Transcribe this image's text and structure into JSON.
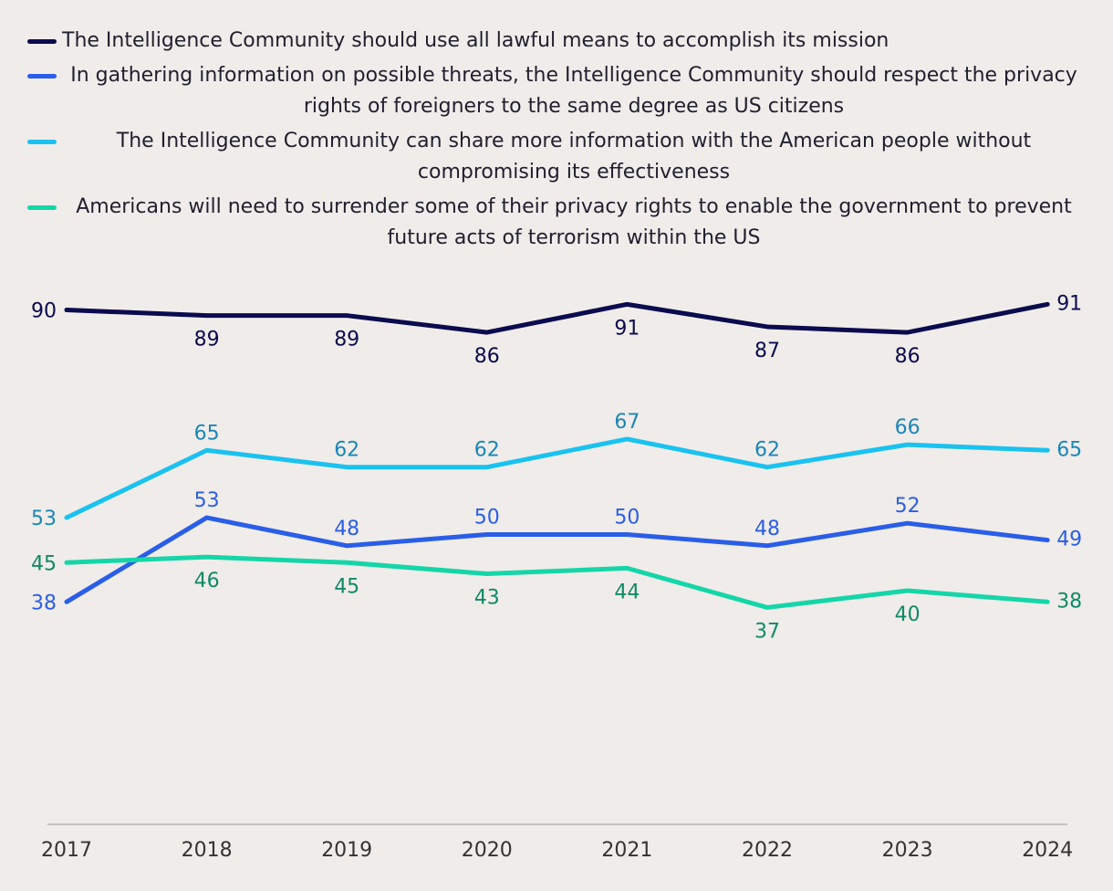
{
  "chart_data": {
    "type": "line",
    "title": "",
    "xlabel": "",
    "ylabel": "",
    "categories": [
      "2017",
      "2018",
      "2019",
      "2020",
      "2021",
      "2022",
      "2023",
      "2024"
    ],
    "ylim": [
      0,
      100
    ],
    "grid": false,
    "legend_position": "top",
    "series": [
      {
        "name": "The Intelligence Community should use all lawful means to accomplish its mission",
        "color": "#0b0b4f",
        "label_color": "#0b0b4f",
        "values": [
          90,
          89,
          89,
          86,
          91,
          87,
          86,
          91
        ]
      },
      {
        "name": "In gathering information on possible threats, the Intelligence Community should respect the privacy rights of foreigners to the same degree as US citizens",
        "color": "#2a5ee8",
        "label_color": "#2a5ee8",
        "values": [
          38,
          53,
          48,
          50,
          50,
          48,
          52,
          49
        ]
      },
      {
        "name": "The Intelligence Community can share more information with the American people without compromising its effectiveness",
        "color": "#1ac2f0",
        "label_color": "#1a86b8",
        "values": [
          53,
          65,
          62,
          62,
          67,
          62,
          66,
          65
        ]
      },
      {
        "name": "Americans will need to surrender some of their privacy rights to enable the government to prevent future acts of terrorism within the US",
        "color": "#14d6a8",
        "label_color": "#0f8a66",
        "values": [
          45,
          46,
          45,
          43,
          44,
          37,
          40,
          38
        ]
      }
    ]
  }
}
